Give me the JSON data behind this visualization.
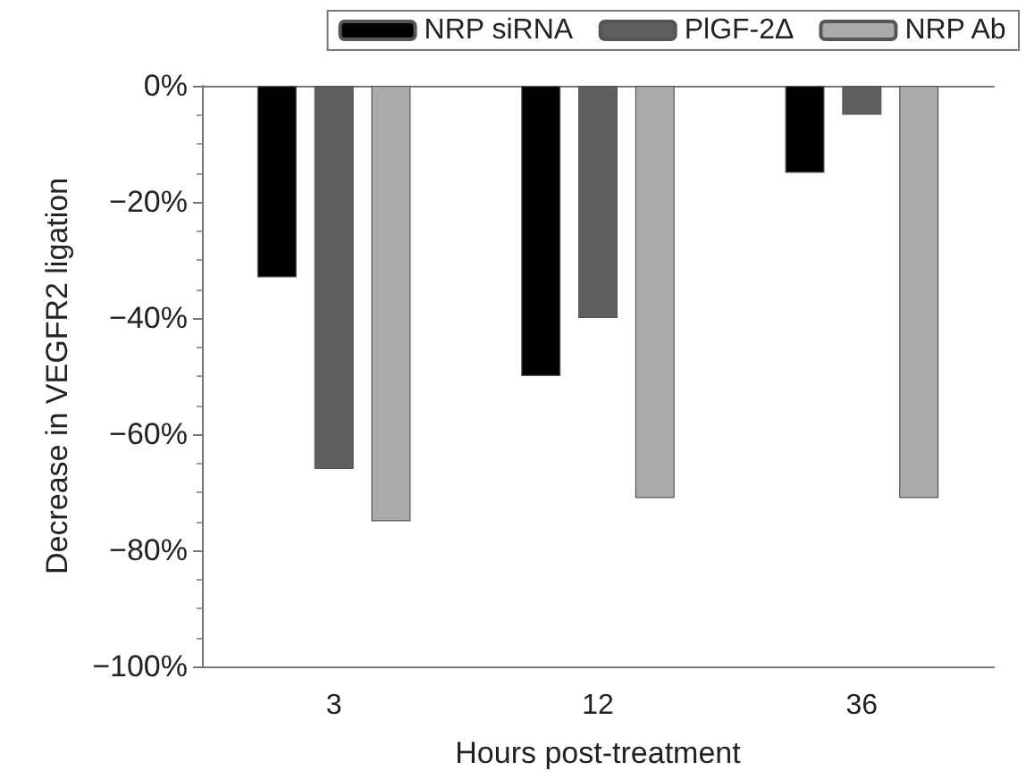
{
  "chart_data": {
    "type": "bar",
    "xlabel": "Hours post-treatment",
    "ylabel": "Decrease in VEGFR2 ligation",
    "categories": [
      "3",
      "12",
      "36"
    ],
    "series": [
      {
        "name": "NRP siRNA",
        "color": "#000000",
        "values": [
          -33,
          -50,
          -15
        ]
      },
      {
        "name": "PlGF-2Δ",
        "color": "#5f5f5f",
        "values": [
          -66,
          -40,
          -5
        ]
      },
      {
        "name": "NRP Ab",
        "color": "#aaaaaa",
        "values": [
          -75,
          -71,
          -71
        ]
      }
    ],
    "ylim": [
      -100,
      0
    ],
    "yticks": [
      {
        "value": -100,
        "label": "−100%"
      },
      {
        "value": -80,
        "label": "−80%"
      },
      {
        "value": -60,
        "label": "−60%"
      },
      {
        "value": -40,
        "label": "−40%"
      },
      {
        "value": -20,
        "label": "−20%"
      },
      {
        "value": 0,
        "label": "0%"
      }
    ],
    "legend": "top",
    "grid": false
  }
}
